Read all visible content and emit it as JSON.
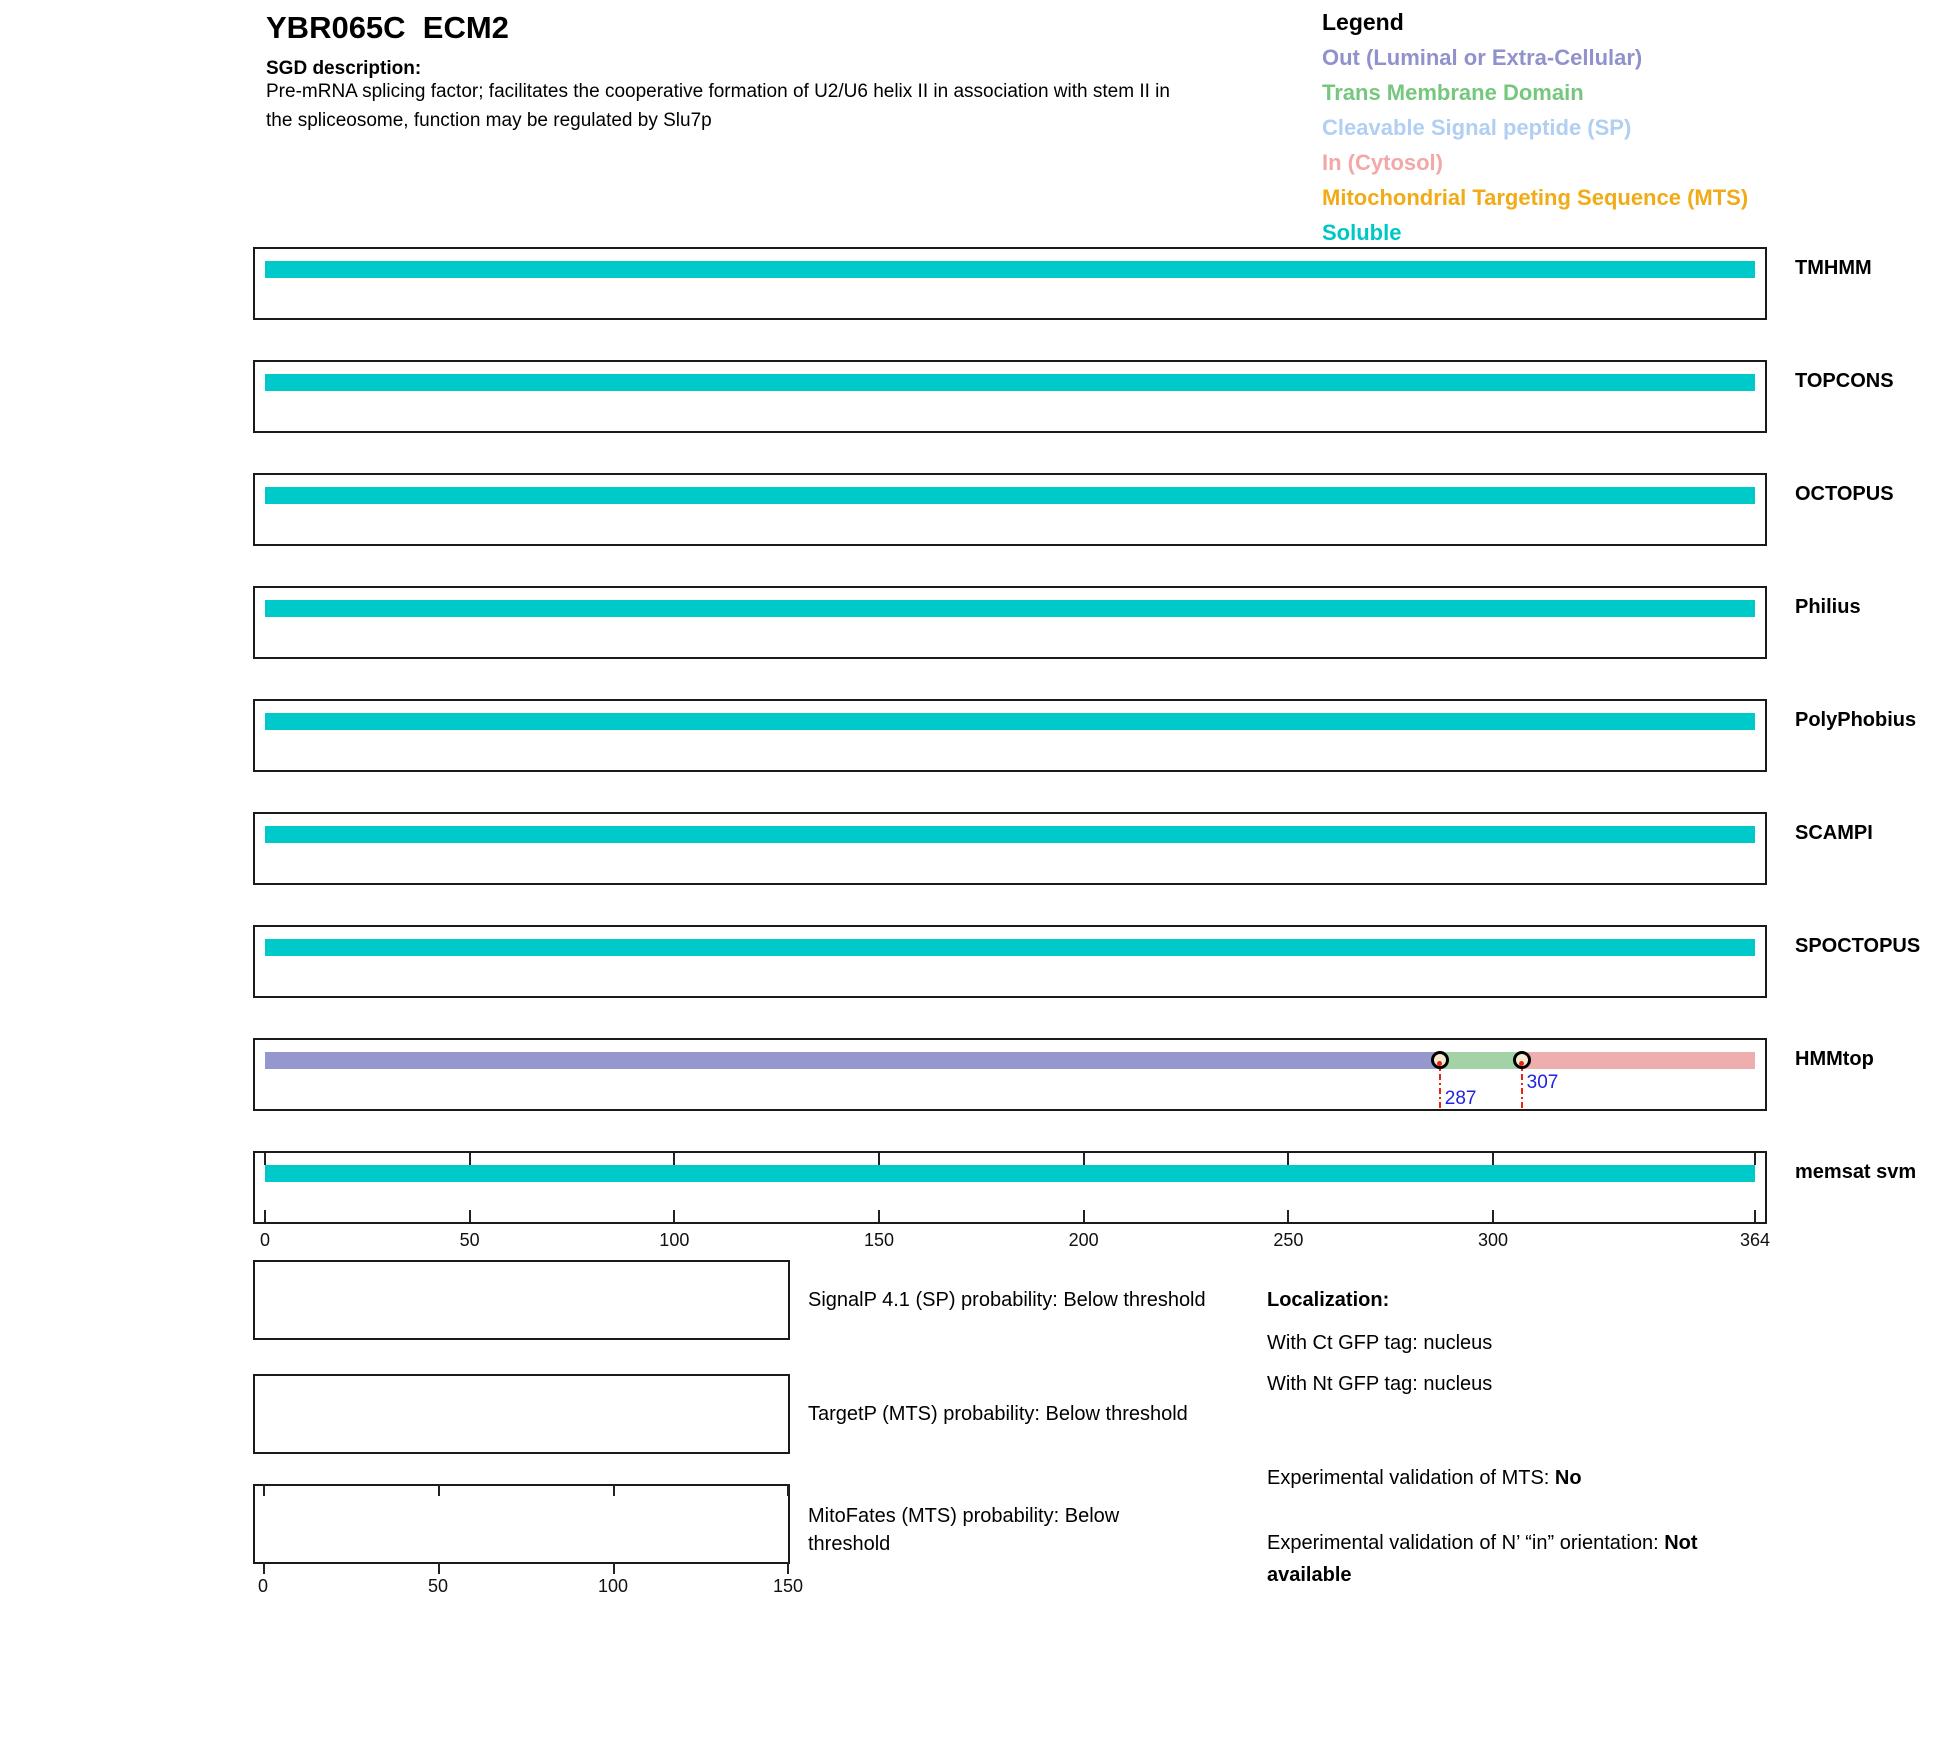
{
  "header": {
    "title": "YBR065C  ECM2",
    "sgd_label": "SGD description:",
    "description_line1": "Pre-mRNA splicing factor; facilitates the cooperative formation of U2/U6 helix II in association with stem II in",
    "description_line2": "the spliceosome, function may be regulated by Slu7p"
  },
  "legend": {
    "title": "Legend",
    "items": [
      {
        "key": "Out",
        "label": "Out (Luminal or Extra-Cellular)",
        "color": "#9191cb"
      },
      {
        "key": "TM",
        "label": "Trans Membrane Domain",
        "color": "#76c77e"
      },
      {
        "key": "SP",
        "label": "Cleavable Signal peptide (SP)",
        "color": "#b0cff2"
      },
      {
        "key": "In",
        "label": "In (Cytosol)",
        "color": "#f2a8a8"
      },
      {
        "key": "MTS",
        "label": "Mitochondrial Targeting Sequence (MTS)",
        "color": "#f0ab17"
      },
      {
        "key": "Soluble",
        "label": "Soluble",
        "color": "#00c6c6"
      }
    ]
  },
  "chart_data": {
    "type": "bar",
    "orientation": "horizontal",
    "title": "Topology predictions per residue for YBR065C ECM2",
    "x_range": [
      0,
      364
    ],
    "x_ticks": [
      0,
      50,
      100,
      150,
      200,
      250,
      300,
      364
    ],
    "class_colors": {
      "Out": "#9697cc",
      "TM": "#a2d2a5",
      "In": "#efaeae",
      "Soluble": "#00c9c9"
    },
    "rows": [
      {
        "name": "TMHMM",
        "segments": [
          {
            "class": "Soluble",
            "start": 0,
            "end": 364
          }
        ]
      },
      {
        "name": "TOPCONS",
        "segments": [
          {
            "class": "Soluble",
            "start": 0,
            "end": 364
          }
        ]
      },
      {
        "name": "OCTOPUS",
        "segments": [
          {
            "class": "Soluble",
            "start": 0,
            "end": 364
          }
        ]
      },
      {
        "name": "Philius",
        "segments": [
          {
            "class": "Soluble",
            "start": 0,
            "end": 364
          }
        ]
      },
      {
        "name": "PolyPhobius",
        "segments": [
          {
            "class": "Soluble",
            "start": 0,
            "end": 364
          }
        ]
      },
      {
        "name": "SCAMPI",
        "segments": [
          {
            "class": "Soluble",
            "start": 0,
            "end": 364
          }
        ]
      },
      {
        "name": "SPOCTOPUS",
        "segments": [
          {
            "class": "Soluble",
            "start": 0,
            "end": 364
          }
        ]
      },
      {
        "name": "HMMtop",
        "segments": [
          {
            "class": "Out",
            "start": 0,
            "end": 287
          },
          {
            "class": "TM",
            "start": 287,
            "end": 307
          },
          {
            "class": "In",
            "start": 307,
            "end": 364
          }
        ],
        "boundary_markers": [
          287,
          307
        ]
      },
      {
        "name": "memsat svm",
        "segments": [
          {
            "class": "Soluble",
            "start": 0,
            "end": 364
          }
        ],
        "ruler": true
      }
    ]
  },
  "probability_plots": [
    {
      "label": "SignalP 4.1 (SP) probability: Below threshold"
    },
    {
      "label": "TargetP (MTS) probability: Below threshold"
    },
    {
      "label": "MitoFates (MTS) probability: Below threshold",
      "axis": {
        "min": 0,
        "max": 150,
        "ticks": [
          0,
          50,
          100,
          150
        ]
      }
    }
  ],
  "info_panel": {
    "localization_title": "Localization:",
    "lines": [
      "With Ct GFP tag: nucleus",
      "With Nt GFP tag: nucleus"
    ],
    "mts": {
      "label": "Experimental validation of MTS: ",
      "value": "No"
    },
    "orientation": {
      "label": "Experimental validation of N’ “in” orientation: ",
      "value": "Not available"
    }
  }
}
